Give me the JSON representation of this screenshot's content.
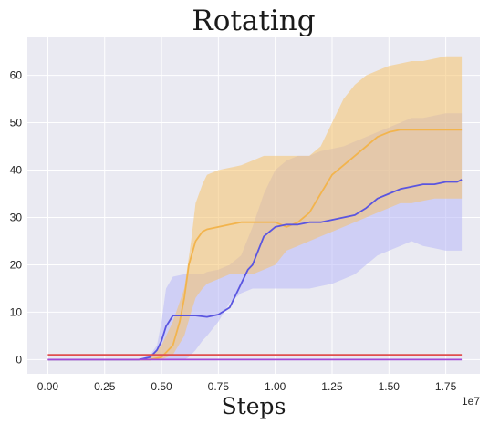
{
  "chart_data": {
    "type": "line",
    "title": "Rotating",
    "xlabel": "Steps",
    "ylabel": "",
    "x_offset_label": "1e7",
    "xlim": [
      -0.09,
      1.9
    ],
    "ylim": [
      -3,
      68
    ],
    "xticks": [
      0.0,
      0.25,
      0.5,
      0.75,
      1.0,
      1.25,
      1.5,
      1.75
    ],
    "xtick_labels": [
      "0.00",
      "0.25",
      "0.50",
      "0.75",
      "1.00",
      "1.25",
      "1.50",
      "1.75"
    ],
    "yticks": [
      0,
      10,
      20,
      30,
      40,
      50,
      60
    ],
    "ytick_labels": [
      "0",
      "10",
      "20",
      "30",
      "40",
      "50",
      "60"
    ],
    "grid": true,
    "background": "#eaeaf2",
    "series": [
      {
        "color": "#b8b8f8",
        "kind": "band",
        "x": [
          0.0,
          0.4,
          0.45,
          0.48,
          0.5,
          0.52,
          0.55,
          0.58,
          0.6,
          0.62,
          0.65,
          0.68,
          0.7,
          0.75,
          0.8,
          0.85,
          0.9,
          0.95,
          1.0,
          1.05,
          1.1,
          1.15,
          1.2,
          1.25,
          1.3,
          1.35,
          1.4,
          1.45,
          1.5,
          1.55,
          1.6,
          1.65,
          1.7,
          1.75,
          1.8,
          1.82
        ],
        "lower": [
          0,
          0,
          0,
          0,
          0,
          0,
          0,
          0,
          0,
          0.5,
          2,
          4,
          5,
          8,
          12,
          14,
          15,
          15,
          15,
          15,
          15,
          15,
          15.5,
          16,
          17,
          18,
          20,
          22,
          23,
          24,
          25,
          24,
          23.5,
          23,
          23,
          23
        ],
        "upper": [
          0,
          0,
          1,
          3,
          8,
          15,
          17.5,
          17.8,
          18,
          18,
          18,
          18,
          18.5,
          19,
          20,
          22,
          28,
          35,
          40,
          42,
          43,
          43,
          44,
          44.5,
          45,
          46,
          47,
          48,
          49,
          50,
          51,
          51,
          51.5,
          52,
          52,
          52
        ]
      },
      {
        "color": "#f5c26b",
        "kind": "band",
        "x": [
          0.0,
          0.4,
          0.45,
          0.5,
          0.55,
          0.6,
          0.63,
          0.65,
          0.68,
          0.7,
          0.75,
          0.8,
          0.85,
          0.9,
          0.95,
          1.0,
          1.05,
          1.1,
          1.15,
          1.2,
          1.25,
          1.3,
          1.35,
          1.4,
          1.45,
          1.5,
          1.55,
          1.6,
          1.65,
          1.7,
          1.75,
          1.8,
          1.82
        ],
        "lower": [
          0,
          0,
          0,
          0,
          1,
          5,
          10,
          13,
          15,
          16,
          17,
          18,
          18,
          18,
          19,
          20,
          23,
          24,
          25,
          26,
          27,
          28,
          29,
          30,
          31,
          32,
          33,
          33,
          33.5,
          34,
          34,
          34,
          34
        ],
        "upper": [
          0,
          0,
          0.5,
          3,
          8,
          15,
          25,
          33,
          37,
          39,
          40,
          40.5,
          41,
          42,
          43,
          43,
          43,
          43,
          43,
          45,
          50,
          55,
          58,
          60,
          61,
          62,
          62.5,
          63,
          63,
          63.5,
          64,
          64,
          64
        ]
      },
      {
        "color": "#f2b44d",
        "kind": "line",
        "x": [
          0.0,
          0.4,
          0.45,
          0.5,
          0.52,
          0.55,
          0.58,
          0.6,
          0.62,
          0.65,
          0.68,
          0.7,
          0.75,
          0.8,
          0.85,
          0.9,
          0.95,
          1.0,
          1.05,
          1.1,
          1.15,
          1.2,
          1.25,
          1.3,
          1.35,
          1.4,
          1.45,
          1.5,
          1.55,
          1.6,
          1.65,
          1.7,
          1.75,
          1.8,
          1.82
        ],
        "y": [
          0,
          0,
          0,
          0.5,
          1.5,
          3,
          8,
          13,
          20,
          25,
          27,
          27.5,
          28,
          28.5,
          29,
          29,
          29,
          29,
          28,
          29,
          31,
          35,
          39,
          41,
          43,
          45,
          47,
          48,
          48.5,
          48.5,
          48.5,
          48.5,
          48.5,
          48.5,
          48.5
        ]
      },
      {
        "color": "#5a55e0",
        "kind": "line",
        "x": [
          0.0,
          0.4,
          0.45,
          0.48,
          0.5,
          0.52,
          0.55,
          0.6,
          0.65,
          0.7,
          0.75,
          0.8,
          0.83,
          0.85,
          0.88,
          0.9,
          0.95,
          1.0,
          1.05,
          1.1,
          1.15,
          1.2,
          1.25,
          1.3,
          1.35,
          1.4,
          1.45,
          1.5,
          1.55,
          1.6,
          1.65,
          1.7,
          1.75,
          1.8,
          1.82
        ],
        "y": [
          0,
          0,
          0.5,
          2,
          4,
          7,
          9.3,
          9.3,
          9.3,
          9,
          9.5,
          11,
          14,
          16,
          19,
          20,
          26,
          28,
          28.5,
          28.5,
          29,
          29,
          29.5,
          30,
          30.5,
          32,
          34,
          35,
          36,
          36.5,
          37,
          37,
          37.5,
          37.5,
          38
        ]
      },
      {
        "color": "#e05050",
        "kind": "line",
        "x": [
          0.0,
          1.82
        ],
        "y": [
          1,
          1
        ]
      },
      {
        "color": "#a24ad6",
        "kind": "line",
        "x": [
          0.0,
          1.82
        ],
        "y": [
          0,
          0
        ]
      }
    ]
  }
}
